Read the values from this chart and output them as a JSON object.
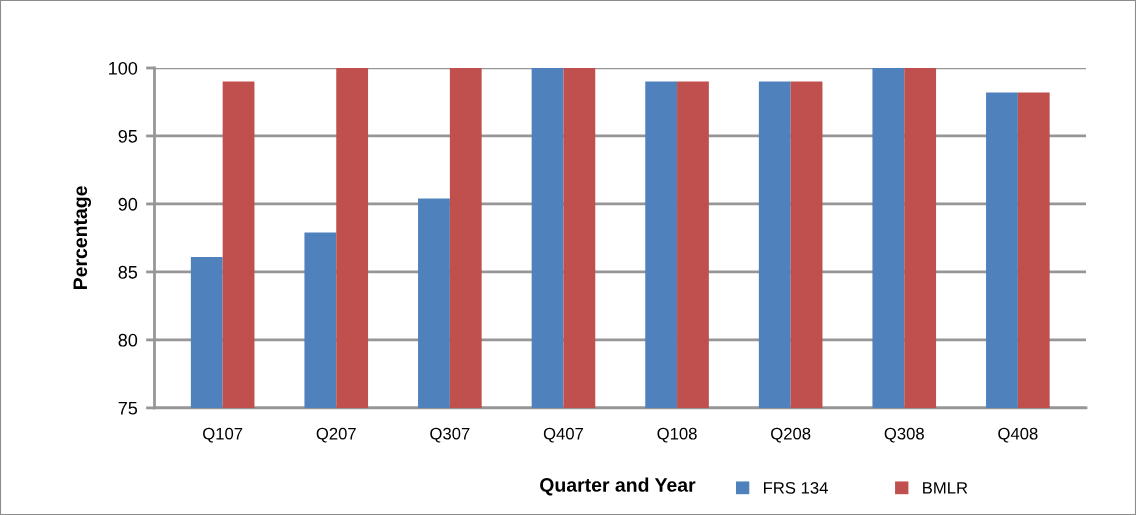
{
  "chart_data": {
    "type": "bar",
    "categories": [
      "Q107",
      "Q207",
      "Q307",
      "Q407",
      "Q108",
      "Q208",
      "Q308",
      "Q408"
    ],
    "series": [
      {
        "name": "FRS 134",
        "color": "#4f81bd",
        "values": [
          86.1,
          87.9,
          90.4,
          100,
          99.0,
          99.0,
          100,
          98.2
        ]
      },
      {
        "name": "BMLR",
        "color": "#c0504d",
        "values": [
          99.0,
          100,
          100,
          100,
          99.0,
          99.0,
          100,
          98.2
        ]
      }
    ],
    "xlabel": "Quarter and Year",
    "ylabel": "Percentage",
    "ylim": [
      75,
      100
    ],
    "yticks": [
      75,
      80,
      85,
      90,
      95,
      100
    ],
    "grid": "y",
    "legend": "bottom right"
  }
}
